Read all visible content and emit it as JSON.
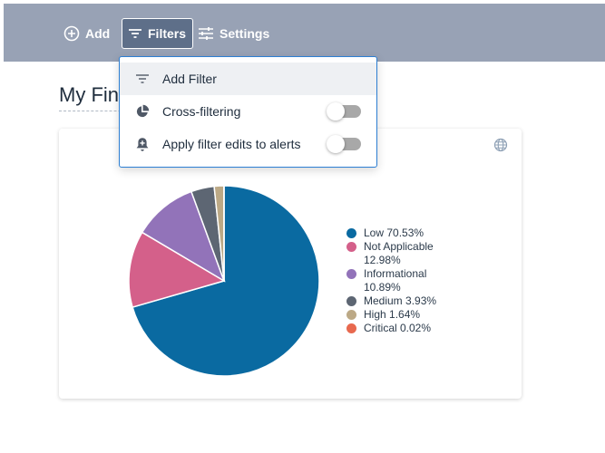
{
  "toolbar": {
    "add_label": "Add",
    "filters_label": "Filters",
    "settings_label": "Settings"
  },
  "page": {
    "title": "My Findings"
  },
  "dropdown": {
    "items": [
      {
        "label": "Add Filter",
        "icon": "filter-lines-icon"
      },
      {
        "label": "Cross-filtering",
        "icon": "pie-chart-icon",
        "toggle_on": false
      },
      {
        "label": "Apply filter edits to alerts",
        "icon": "bell-plus-icon",
        "toggle_on": false
      }
    ]
  },
  "colors": {
    "toolbar_bg": "#98a2b5",
    "filters_active_bg": "#5e6f89",
    "dropdown_border": "#2d7fd3",
    "toggle_off": "#a8a8a8"
  },
  "chart_data": {
    "type": "pie",
    "title": "",
    "series": [
      {
        "name": "Low",
        "label": "Low 70.53%",
        "value": 70.53,
        "color": "#0a6aa1"
      },
      {
        "name": "Not Applicable",
        "label": "Not Applicable 12.98%",
        "value": 12.98,
        "color": "#d4608a"
      },
      {
        "name": "Informational",
        "label": "Informational 10.89%",
        "value": 10.89,
        "color": "#9273b9"
      },
      {
        "name": "Medium",
        "label": "Medium 3.93%",
        "value": 3.93,
        "color": "#5d6673"
      },
      {
        "name": "High",
        "label": "High 1.64%",
        "value": 1.64,
        "color": "#bca986"
      },
      {
        "name": "Critical",
        "label": "Critical 0.02%",
        "value": 0.02,
        "color": "#e8694f"
      }
    ],
    "legend_placement": "right"
  }
}
